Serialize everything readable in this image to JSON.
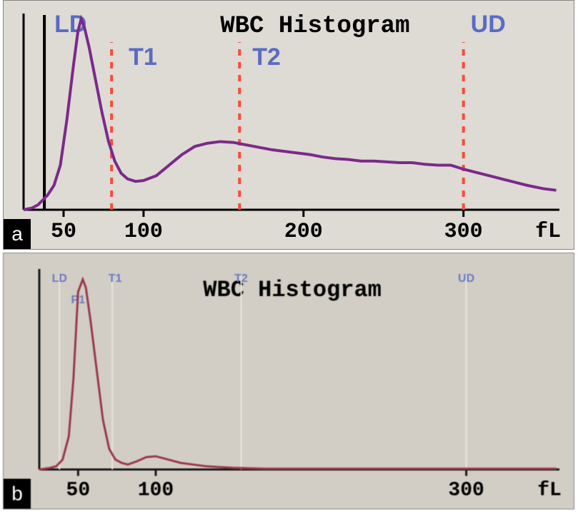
{
  "panel_a": {
    "label": "a",
    "title": "WBC Histogram",
    "title_fontsize": 34,
    "title_fontweight": "bold",
    "background_color": "#dedad4",
    "axis_color": "#000000",
    "axis_width": 3,
    "curve_color": "#7a2a8a",
    "curve_width": 4,
    "discriminator_solid_color": "#000000",
    "discriminator_solid_width": 4,
    "discriminator_dash_color": "#ff4a3a",
    "discriminator_dash_width": 4,
    "marker_label_color": "#5a6bc4",
    "marker_label_fontsize": 34,
    "tick_label_fontsize": 30,
    "markers": {
      "LD": {
        "x_fL": 38,
        "label": "LD",
        "style": "solid"
      },
      "T1": {
        "x_fL": 80,
        "label": "T1",
        "style": "dashed"
      },
      "T2": {
        "x_fL": 160,
        "label": "T2",
        "style": "dashed"
      },
      "UD": {
        "x_fL": 300,
        "label": "UD",
        "style": "dashed"
      }
    },
    "xaxis": {
      "unit": "fL",
      "ticks": [
        50,
        100,
        200,
        300
      ],
      "xlim": [
        25,
        360
      ]
    },
    "curve_points": [
      [
        25,
        0
      ],
      [
        30,
        2
      ],
      [
        34,
        6
      ],
      [
        37,
        12
      ],
      [
        40,
        18
      ],
      [
        44,
        30
      ],
      [
        48,
        55
      ],
      [
        52,
        110
      ],
      [
        56,
        175
      ],
      [
        59,
        220
      ],
      [
        61,
        235
      ],
      [
        63,
        225
      ],
      [
        66,
        200
      ],
      [
        70,
        160
      ],
      [
        74,
        120
      ],
      [
        78,
        85
      ],
      [
        82,
        60
      ],
      [
        86,
        45
      ],
      [
        90,
        38
      ],
      [
        95,
        35
      ],
      [
        100,
        36
      ],
      [
        108,
        42
      ],
      [
        116,
        55
      ],
      [
        124,
        68
      ],
      [
        132,
        78
      ],
      [
        140,
        82
      ],
      [
        148,
        84
      ],
      [
        156,
        83
      ],
      [
        164,
        80
      ],
      [
        172,
        77
      ],
      [
        180,
        74
      ],
      [
        188,
        72
      ],
      [
        196,
        70
      ],
      [
        204,
        68
      ],
      [
        212,
        65
      ],
      [
        220,
        63
      ],
      [
        228,
        62
      ],
      [
        236,
        60
      ],
      [
        244,
        60
      ],
      [
        252,
        59
      ],
      [
        260,
        58
      ],
      [
        268,
        58
      ],
      [
        276,
        56
      ],
      [
        284,
        55
      ],
      [
        292,
        55
      ],
      [
        300,
        50
      ],
      [
        308,
        46
      ],
      [
        316,
        42
      ],
      [
        324,
        38
      ],
      [
        332,
        34
      ],
      [
        340,
        30
      ],
      [
        350,
        26
      ],
      [
        358,
        24
      ]
    ]
  },
  "panel_b": {
    "label": "b",
    "title": "WBC Histogram",
    "title_fontsize": 32,
    "title_fontweight": "bold",
    "background_color": "#d2cdc5",
    "axis_color": "#1a1a1a",
    "axis_width": 3,
    "curve_color": "#9a3a4a",
    "curve_width": 3,
    "discriminator_line_color": "#e8e4dc",
    "discriminator_line_width": 2,
    "marker_label_color": "#6a7bc4",
    "marker_label_fontsize": 16,
    "tick_label_fontsize": 28,
    "markers": {
      "LD": {
        "x_fL": 38,
        "label": "LD"
      },
      "P1": {
        "x_fL": 50,
        "label": "P1"
      },
      "T1": {
        "x_fL": 72,
        "label": "T1"
      },
      "T2": {
        "x_fL": 155,
        "label": "T2"
      },
      "UD": {
        "x_fL": 300,
        "label": "UD"
      }
    },
    "xaxis": {
      "unit": "fL",
      "ticks": [
        50,
        100,
        300
      ],
      "xlim": [
        25,
        360
      ]
    },
    "curve_points": [
      [
        25,
        0
      ],
      [
        32,
        2
      ],
      [
        36,
        4
      ],
      [
        40,
        12
      ],
      [
        44,
        40
      ],
      [
        47,
        110
      ],
      [
        50,
        215
      ],
      [
        53,
        230
      ],
      [
        55,
        220
      ],
      [
        58,
        180
      ],
      [
        62,
        120
      ],
      [
        66,
        60
      ],
      [
        70,
        25
      ],
      [
        74,
        12
      ],
      [
        78,
        8
      ],
      [
        82,
        6
      ],
      [
        88,
        10
      ],
      [
        94,
        15
      ],
      [
        100,
        16
      ],
      [
        108,
        12
      ],
      [
        116,
        8
      ],
      [
        124,
        6
      ],
      [
        132,
        4
      ],
      [
        140,
        3
      ],
      [
        150,
        2
      ],
      [
        170,
        1
      ],
      [
        200,
        1
      ],
      [
        250,
        1
      ],
      [
        300,
        1
      ],
      [
        358,
        1
      ]
    ]
  }
}
